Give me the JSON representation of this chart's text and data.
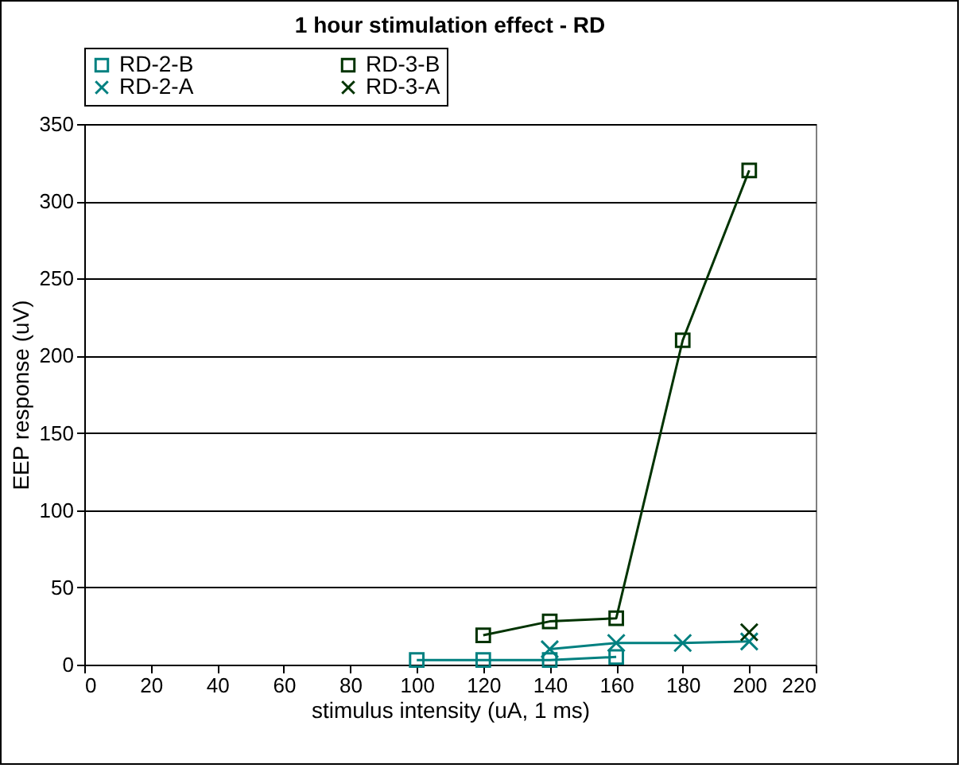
{
  "chart_data": {
    "type": "line",
    "title": "1 hour stimulation effect - RD",
    "xlabel": "stimulus intensity (uA, 1 ms)",
    "ylabel": "EEP response (uV)",
    "xlim": [
      0,
      220
    ],
    "xticks": [
      0,
      20,
      40,
      60,
      80,
      100,
      120,
      140,
      160,
      180,
      200,
      220
    ],
    "ylim": [
      0,
      350
    ],
    "yticks": [
      0,
      50,
      100,
      150,
      200,
      250,
      300,
      350
    ],
    "grid": "y",
    "legend": "top",
    "series": [
      {
        "name": "RD-2-B",
        "color": "#008080",
        "marker": "square",
        "x": [
          100,
          120,
          140,
          160
        ],
        "values": [
          3,
          3,
          3,
          5
        ]
      },
      {
        "name": "RD-3-B",
        "color": "#003300",
        "marker": "square",
        "x": [
          120,
          140,
          160,
          180,
          200
        ],
        "values": [
          19,
          28,
          30,
          210,
          320
        ]
      },
      {
        "name": "RD-2-A",
        "color": "#008080",
        "marker": "cross",
        "x": [
          140,
          160,
          180,
          200
        ],
        "values": [
          10,
          14,
          14,
          15
        ]
      },
      {
        "name": "RD-3-A",
        "color": "#003300",
        "marker": "cross",
        "x": [
          200
        ],
        "values": [
          21
        ]
      }
    ]
  }
}
